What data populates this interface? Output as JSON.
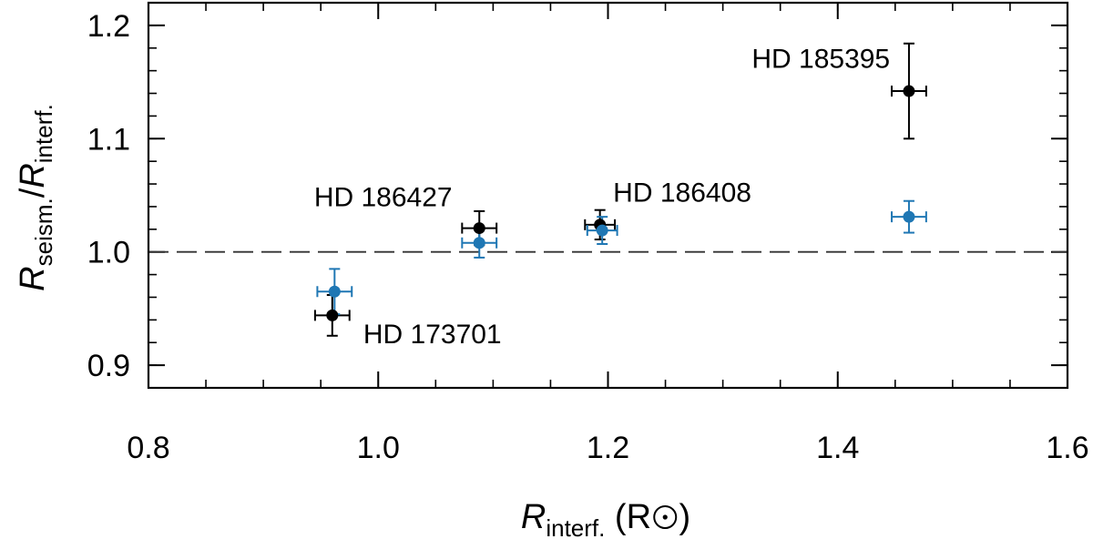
{
  "chart_data": {
    "type": "scatter",
    "xlabel": {
      "symbol": "R",
      "sub": "interf.",
      "unit_pre": " (R",
      "unit_post": ")"
    },
    "ylabel": {
      "num_symbol": "R",
      "num_sub": "seism.",
      "sep": "/",
      "den_symbol": "R",
      "den_sub": "interf."
    },
    "xlim": [
      0.8,
      1.6
    ],
    "ylim": [
      0.88,
      1.22
    ],
    "x_ticks": [
      0.8,
      1.0,
      1.2,
      1.4,
      1.6
    ],
    "x_tick_labels": [
      "0.8",
      "1.0",
      "1.2",
      "1.4",
      "1.6"
    ],
    "x_minor_step": 0.05,
    "y_ticks": [
      0.9,
      1.0,
      1.1,
      1.2
    ],
    "y_tick_labels": [
      "0.9",
      "1.0",
      "1.1",
      "1.2"
    ],
    "y_minor_step": 0.02,
    "reference_line": {
      "y": 1.0,
      "style": "dashed"
    },
    "series": [
      {
        "color": "#000000",
        "points": [
          {
            "x": 0.96,
            "y": 0.944,
            "xerr": 0.015,
            "yerr": 0.018
          },
          {
            "x": 1.088,
            "y": 1.021,
            "xerr": 0.015,
            "yerr": 0.015
          },
          {
            "x": 1.193,
            "y": 1.024,
            "xerr": 0.013,
            "yerr": 0.013
          },
          {
            "x": 1.462,
            "y": 1.142,
            "xerr": 0.015,
            "yerr": 0.042
          }
        ]
      },
      {
        "color": "#1f77b4",
        "points": [
          {
            "x": 0.962,
            "y": 0.965,
            "xerr": 0.015,
            "yerr": 0.02
          },
          {
            "x": 1.088,
            "y": 1.008,
            "xerr": 0.015,
            "yerr": 0.013
          },
          {
            "x": 1.195,
            "y": 1.019,
            "xerr": 0.013,
            "yerr": 0.012
          },
          {
            "x": 1.462,
            "y": 1.031,
            "xerr": 0.015,
            "yerr": 0.014
          }
        ]
      }
    ],
    "annotations": [
      {
        "text": "HD 173701",
        "x": 0.987,
        "y": 0.9195,
        "anchor": "start"
      },
      {
        "text": "HD 186427",
        "x": 1.0645,
        "y": 1.0405,
        "anchor": "end"
      },
      {
        "text": "HD 186408",
        "x": 1.2045,
        "y": 1.0445,
        "anchor": "start"
      },
      {
        "text": "HD 185395",
        "x": 1.4455,
        "y": 1.1625,
        "anchor": "end"
      }
    ]
  }
}
